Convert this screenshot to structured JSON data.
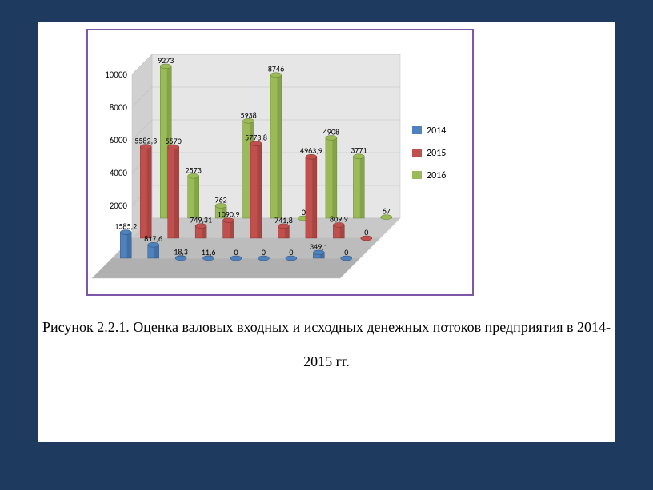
{
  "slide": {
    "background_color": "#1f3a5f",
    "panel_color": "#ffffff",
    "chart_border_color": "#7e57a8"
  },
  "caption": {
    "line1": "Рисунок 2.2.1. Оценка валовых входных и исходных денежных потоков предприятия в 2014-",
    "line2": "2015 гг.",
    "fontsize": 18,
    "font_family": "Times New Roman",
    "color": "#000000"
  },
  "chart": {
    "type": "3d-clustered-cylinder",
    "ylim": [
      0,
      10000
    ],
    "ytick_step": 2000,
    "yticks": [
      0,
      2000,
      4000,
      6000,
      8000,
      10000
    ],
    "background_color": "#ffffff",
    "wall_color": "#d9d9d9",
    "grid_color": "#bfbfbf",
    "label_fontsize": 11,
    "data_label_fontsize": 10,
    "series": [
      {
        "name": "2014",
        "color": "#4f81bd",
        "dark": "#2e4d73"
      },
      {
        "name": "2015",
        "color": "#c0504d",
        "dark": "#7a2e2c"
      },
      {
        "name": "2016",
        "color": "#9bbb59",
        "dark": "#5c7a2e"
      }
    ],
    "groups": [
      {
        "values": [
          1585.2,
          5582.3,
          9273
        ],
        "labels": [
          "1585,2",
          "5582,3",
          "9273"
        ]
      },
      {
        "values": [
          817.6,
          5570,
          2573
        ],
        "labels": [
          "817,6",
          "5570",
          "2573"
        ]
      },
      {
        "values": [
          18.3,
          749.31,
          762
        ],
        "labels": [
          "18,3",
          "749,31",
          "762"
        ]
      },
      {
        "values": [
          11.6,
          1090.9,
          5938
        ],
        "labels": [
          "11,6",
          "1090,9",
          "5938"
        ]
      },
      {
        "values": [
          0,
          5773.8,
          8746
        ],
        "labels": [
          "0",
          "5773,8",
          "8746"
        ]
      },
      {
        "values": [
          0,
          741.8,
          0
        ],
        "labels": [
          "0",
          "741,8",
          "0"
        ]
      },
      {
        "values": [
          0,
          4963.9,
          4908
        ],
        "labels": [
          "0",
          "4963,9",
          "4908"
        ]
      },
      {
        "values": [
          349.1,
          809.9,
          3771
        ],
        "labels": [
          "349,1",
          "809,9",
          "3771"
        ]
      },
      {
        "values": [
          0,
          0,
          67
        ],
        "labels": [
          "0",
          "0",
          "67"
        ]
      }
    ],
    "legend": {
      "position": "right",
      "items": [
        "2014",
        "2015",
        "2016"
      ]
    }
  }
}
